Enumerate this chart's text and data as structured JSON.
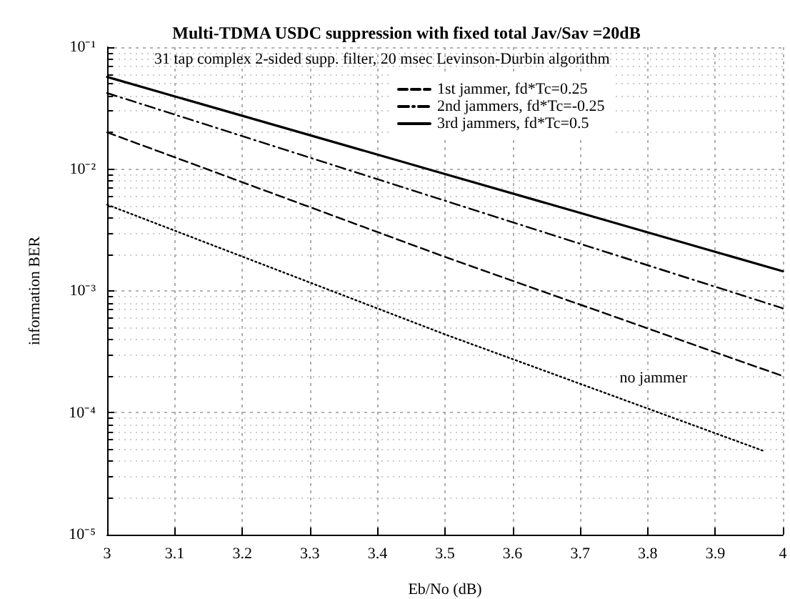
{
  "chart_data": {
    "type": "line",
    "title": "Multi-TDMA USDC suppression with fixed total Jav/Sav =20dB",
    "subtitle": "31 tap complex 2-sided supp. filter, 20 msec Levinson-Durbin algorithm",
    "xlabel": "Eb/No (dB)",
    "ylabel": "information BER",
    "log": "y",
    "grid": true,
    "legend": "top",
    "marker": "none",
    "x": [
      3,
      3.5,
      4
    ],
    "xlim": [
      3,
      4
    ],
    "xticks": [
      3,
      3.1,
      3.2,
      3.3,
      3.4,
      3.5,
      3.6,
      3.7,
      3.8,
      3.9,
      4
    ],
    "ylim": [
      1e-05,
      0.1
    ],
    "yticks": [
      {
        "value": 0.1,
        "label": "10⁻¹"
      },
      {
        "value": 0.01,
        "label": "10⁻²"
      },
      {
        "value": 0.001,
        "label": "10⁻³"
      },
      {
        "value": 0.0001,
        "label": "10⁻⁴"
      },
      {
        "value": 1e-05,
        "label": "10⁻⁵"
      }
    ],
    "series": [
      {
        "name": "1st jammer, fd*Tc=0.25",
        "color": "#000000",
        "line_style": "dashed",
        "values": [
          0.02,
          0.0019,
          0.0002
        ]
      },
      {
        "name": "2nd jammers, fd*Tc=-0.25",
        "color": "#000000",
        "line_style": "dashdot",
        "values": [
          0.042,
          0.0055,
          0.00072
        ]
      },
      {
        "name": "3rd jammers, fd*Tc=0.5",
        "color": "#000000",
        "line_style": "solid",
        "values": [
          0.057,
          0.0091,
          0.00145
        ]
      },
      {
        "name": "no jammer",
        "color": "#000000",
        "line_style": "dotted",
        "x": [
          3,
          3.5,
          3.97
        ],
        "values": [
          0.0051,
          0.00044,
          4.9e-05
        ]
      }
    ]
  }
}
